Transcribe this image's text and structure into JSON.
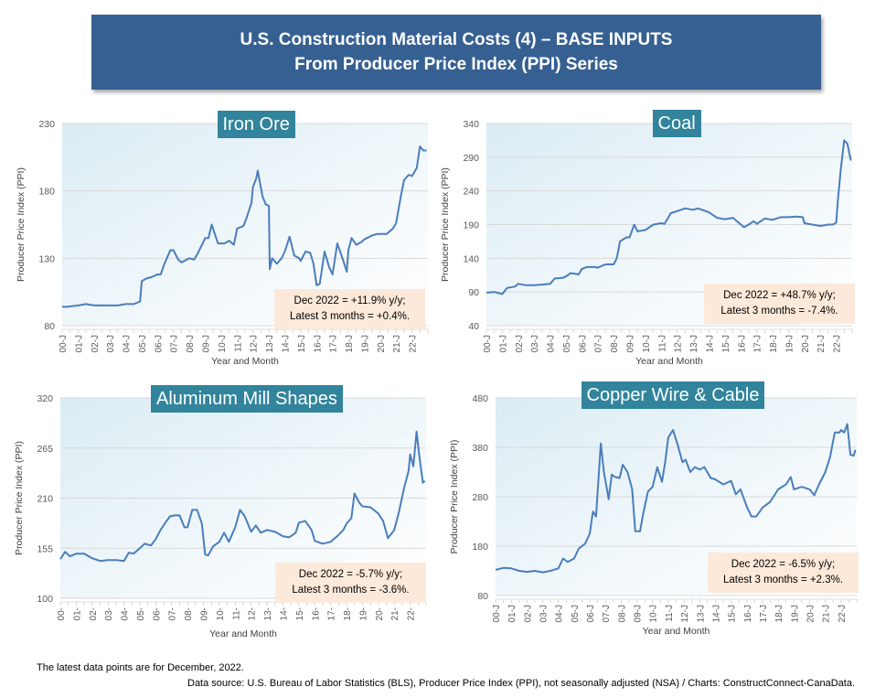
{
  "header": {
    "line1": "U.S. Construction Material Costs (4) – BASE INPUTS",
    "line2": "From Producer Price Index (PPI) Series"
  },
  "footer": {
    "note": "The latest data points are for December, 2022.",
    "source": "Data source: U.S. Bureau of Labor Statistics (BLS), Producer Price Index (PPI), not seasonally adjusted (NSA) / Charts: ConstructConnect-CanaData."
  },
  "colors": {
    "line": "#4a7ebb",
    "title_bg": "#31849b",
    "annot_bg": "#fce9da",
    "header_bg": "#366092",
    "grid": "#d9d9d9"
  },
  "chart_data": [
    {
      "type": "line",
      "title": "Iron Ore",
      "xlabel": "Year and Month",
      "ylabel": "Producer Price Index (PPI)",
      "ylim": [
        80,
        230
      ],
      "yticks": [
        80,
        130,
        180,
        230
      ],
      "xticks": [
        "00-J",
        "01-J",
        "02-J",
        "03-J",
        "04-J",
        "05-J",
        "06-J",
        "07-J",
        "08-J",
        "09-J",
        "10-J",
        "11-J",
        "12-J",
        "13-J",
        "14-J",
        "15-J",
        "16-J",
        "17-J",
        "18-J",
        "19-J",
        "20-J",
        "21-J",
        "22-J"
      ],
      "grid": true,
      "annotation": {
        "line1": "Dec 2022 = +11.9% y/y;",
        "line2": "Latest 3 months = +0.4%."
      },
      "series": [
        {
          "name": "Iron Ore",
          "x": [
            2000,
            2000.3,
            2001,
            2001.5,
            2002,
            2003,
            2003.5,
            2004,
            2004.5,
            2004.9,
            2005,
            2005.3,
            2005.6,
            2006,
            2006.2,
            2006.4,
            2006.8,
            2007,
            2007.3,
            2007.5,
            2008,
            2008.3,
            2008.5,
            2009,
            2009.2,
            2009.4,
            2009.8,
            2010,
            2010.2,
            2010.5,
            2010.8,
            2011,
            2011.4,
            2011.6,
            2011.9,
            2012,
            2012.2,
            2012.3,
            2012.6,
            2012.8,
            2013,
            2013.05,
            2013.2,
            2013.5,
            2013.8,
            2014,
            2014.3,
            2014.6,
            2014.9,
            2015,
            2015.3,
            2015.6,
            2015.8,
            2016,
            2016.2,
            2016.5,
            2016.8,
            2017,
            2017.3,
            2017.6,
            2017.9,
            2018,
            2018.2,
            2018.5,
            2018.8,
            2019,
            2019.5,
            2019.8,
            2020,
            2020.4,
            2020.8,
            2021,
            2021.3,
            2021.5,
            2021.8,
            2022,
            2022.3,
            2022.5,
            2022.7,
            2022.92
          ],
          "values": [
            94,
            94,
            95,
            96,
            95,
            95,
            95,
            96,
            96,
            98,
            113,
            115,
            116,
            118,
            118,
            125,
            136,
            136,
            129,
            127,
            130,
            129,
            133,
            145,
            145,
            155,
            141,
            141,
            141,
            143,
            140,
            152,
            154,
            160,
            171,
            183,
            189,
            195,
            176,
            170,
            169,
            122,
            130,
            126,
            130,
            135,
            146,
            132,
            130,
            128,
            135,
            134,
            126,
            110,
            111,
            135,
            123,
            118,
            141,
            131,
            120,
            136,
            145,
            140,
            142,
            144,
            147,
            148,
            148,
            148,
            152,
            156,
            176,
            188,
            192,
            191,
            197,
            213,
            210,
            210
          ]
        }
      ]
    },
    {
      "type": "line",
      "title": "Coal",
      "xlabel": "Year and Month",
      "ylabel": "Producer Price Index (PPI)",
      "ylim": [
        40,
        340
      ],
      "yticks": [
        40,
        90,
        140,
        190,
        240,
        290,
        340
      ],
      "xticks": [
        "00-J",
        "01-J",
        "02-J",
        "03-J",
        "04-J",
        "05-J",
        "06-J",
        "07-J",
        "08-J",
        "09-J",
        "10-J",
        "11-J",
        "12-J",
        "13-J",
        "14-J",
        "15-J",
        "16-J",
        "17-J",
        "18-J",
        "19-J",
        "20-J",
        "21-J",
        "22-J"
      ],
      "grid": true,
      "annotation": {
        "line1": "Dec 2022 = +48.7% y/y;",
        "line2": "Latest 3 months = -7.4%."
      },
      "series": [
        {
          "name": "Coal",
          "x": [
            2000,
            2000.5,
            2001,
            2001.3,
            2001.8,
            2002,
            2002.5,
            2003,
            2003.5,
            2004,
            2004.3,
            2004.8,
            2005,
            2005.3,
            2005.8,
            2006,
            2006.3,
            2006.8,
            2007,
            2007.5,
            2008,
            2008.2,
            2008.4,
            2008.8,
            2009,
            2009.3,
            2009.5,
            2010,
            2010.5,
            2011,
            2011.2,
            2011.6,
            2012,
            2012.5,
            2013,
            2013.3,
            2013.8,
            2014,
            2014.5,
            2015,
            2015.5,
            2016,
            2016.2,
            2016.5,
            2016.8,
            2017,
            2017.5,
            2018,
            2018.5,
            2019,
            2019.5,
            2019.9,
            2020,
            2020.5,
            2021,
            2021.5,
            2021.8,
            2022,
            2022.1,
            2022.3,
            2022.5,
            2022.7,
            2022.92
          ],
          "values": [
            89,
            90,
            87,
            96,
            98,
            102,
            100,
            100,
            101,
            102,
            110,
            111,
            113,
            118,
            116,
            124,
            127,
            127,
            126,
            131,
            131,
            140,
            165,
            171,
            171,
            190,
            180,
            182,
            190,
            192,
            191,
            207,
            210,
            214,
            212,
            214,
            210,
            208,
            200,
            198,
            200,
            190,
            186,
            190,
            195,
            191,
            199,
            197,
            201,
            201,
            202,
            201,
            192,
            190,
            188,
            190,
            190,
            193,
            225,
            275,
            315,
            310,
            285
          ]
        }
      ]
    },
    {
      "type": "line",
      "title": "Aluminum Mill Shapes",
      "xlabel": "Year and Month",
      "ylabel": "Producer Price Index (PPI)",
      "ylim": [
        100,
        320
      ],
      "yticks": [
        100,
        155,
        210,
        265,
        320
      ],
      "xticks": [
        "00-",
        "01-",
        "02-",
        "03-",
        "04-",
        "05-",
        "06-",
        "07-",
        "08-",
        "09-",
        "10-",
        "11-",
        "12-",
        "13-",
        "14-",
        "15-",
        "16-",
        "17-",
        "18-",
        "19-",
        "20-",
        "21-",
        "22-"
      ],
      "grid": true,
      "annotation": {
        "line1": "Dec 2022 = -5.7% y/y;",
        "line2": "Latest 3 months = -3.6%."
      },
      "series": [
        {
          "name": "Aluminum Mill Shapes",
          "x": [
            2000,
            2000.3,
            2000.6,
            2001,
            2001.5,
            2002,
            2002.5,
            2003,
            2003.5,
            2004,
            2004.3,
            2004.6,
            2005,
            2005.3,
            2005.7,
            2006,
            2006.3,
            2006.6,
            2006.9,
            2007.2,
            2007.5,
            2007.8,
            2008,
            2008.3,
            2008.6,
            2008.9,
            2009.1,
            2009.3,
            2009.6,
            2010,
            2010.3,
            2010.6,
            2010.8,
            2011,
            2011.3,
            2011.6,
            2012,
            2012.3,
            2012.6,
            2013,
            2013.5,
            2014,
            2014.4,
            2014.8,
            2015,
            2015.4,
            2015.8,
            2016,
            2016.5,
            2017,
            2017.4,
            2017.8,
            2018,
            2018.3,
            2018.5,
            2018.8,
            2019,
            2019.5,
            2020,
            2020.3,
            2020.6,
            2021,
            2021.3,
            2021.6,
            2021.9,
            2022,
            2022.2,
            2022.4,
            2022.6,
            2022.8,
            2022.92
          ],
          "values": [
            143,
            151,
            146,
            149,
            149,
            144,
            141,
            142,
            142,
            141,
            150,
            149,
            155,
            160,
            158,
            165,
            175,
            183,
            190,
            191,
            191,
            178,
            178,
            197,
            197,
            182,
            148,
            147,
            157,
            162,
            172,
            162,
            170,
            178,
            197,
            190,
            173,
            180,
            172,
            175,
            173,
            168,
            167,
            172,
            183,
            185,
            175,
            163,
            160,
            162,
            168,
            175,
            182,
            188,
            215,
            205,
            201,
            200,
            193,
            185,
            166,
            175,
            195,
            220,
            240,
            258,
            245,
            283,
            253,
            227,
            229
          ]
        }
      ]
    },
    {
      "type": "line",
      "title": "Copper Wire & Cable",
      "xlabel": "Year and Month",
      "ylabel": "Producer Price Index (PPI)",
      "ylim": [
        80,
        480
      ],
      "yticks": [
        80,
        180,
        280,
        380,
        480
      ],
      "xticks": [
        "00-J",
        "01-J",
        "02-J",
        "03-J",
        "04-J",
        "05-J",
        "06-J",
        "07-J",
        "08-J",
        "09-J",
        "10-J",
        "11-J",
        "12-J",
        "13-J",
        "14-J",
        "15-J",
        "16-J",
        "17-J",
        "18-J",
        "19-J",
        "20-J",
        "21-J",
        "22-J"
      ],
      "grid": true,
      "annotation": {
        "line1": "Dec 2022 = -6.5% y/y;",
        "line2": "Latest 3 months = +2.3%."
      },
      "series": [
        {
          "name": "Copper Wire & Cable",
          "x": [
            2000,
            2000.5,
            2001,
            2001.5,
            2002,
            2002.5,
            2003,
            2003.5,
            2004,
            2004.3,
            2004.6,
            2005,
            2005.3,
            2005.7,
            2006,
            2006.2,
            2006.4,
            2006.7,
            2006.9,
            2007.2,
            2007.4,
            2007.6,
            2007.9,
            2008.1,
            2008.4,
            2008.7,
            2008.9,
            2009.2,
            2009.4,
            2009.7,
            2010,
            2010.3,
            2010.6,
            2010.8,
            2011,
            2011.3,
            2011.6,
            2011.9,
            2012.1,
            2012.4,
            2012.7,
            2013,
            2013.3,
            2013.7,
            2014,
            2014.5,
            2015,
            2015.3,
            2015.6,
            2016,
            2016.3,
            2016.6,
            2017,
            2017.5,
            2018,
            2018.5,
            2018.8,
            2019,
            2019.5,
            2020,
            2020.3,
            2020.6,
            2021,
            2021.3,
            2021.6,
            2021.9,
            2022,
            2022.2,
            2022.4,
            2022.6,
            2022.8,
            2022.92
          ],
          "values": [
            132,
            136,
            135,
            130,
            128,
            130,
            127,
            130,
            135,
            155,
            148,
            155,
            175,
            185,
            205,
            250,
            240,
            388,
            330,
            275,
            325,
            320,
            318,
            345,
            330,
            295,
            210,
            210,
            245,
            290,
            300,
            340,
            310,
            350,
            400,
            415,
            385,
            350,
            355,
            330,
            340,
            335,
            340,
            318,
            315,
            305,
            312,
            285,
            295,
            260,
            240,
            240,
            258,
            270,
            295,
            305,
            320,
            295,
            300,
            295,
            283,
            305,
            330,
            360,
            410,
            410,
            415,
            410,
            427,
            365,
            363,
            375
          ]
        }
      ]
    }
  ]
}
